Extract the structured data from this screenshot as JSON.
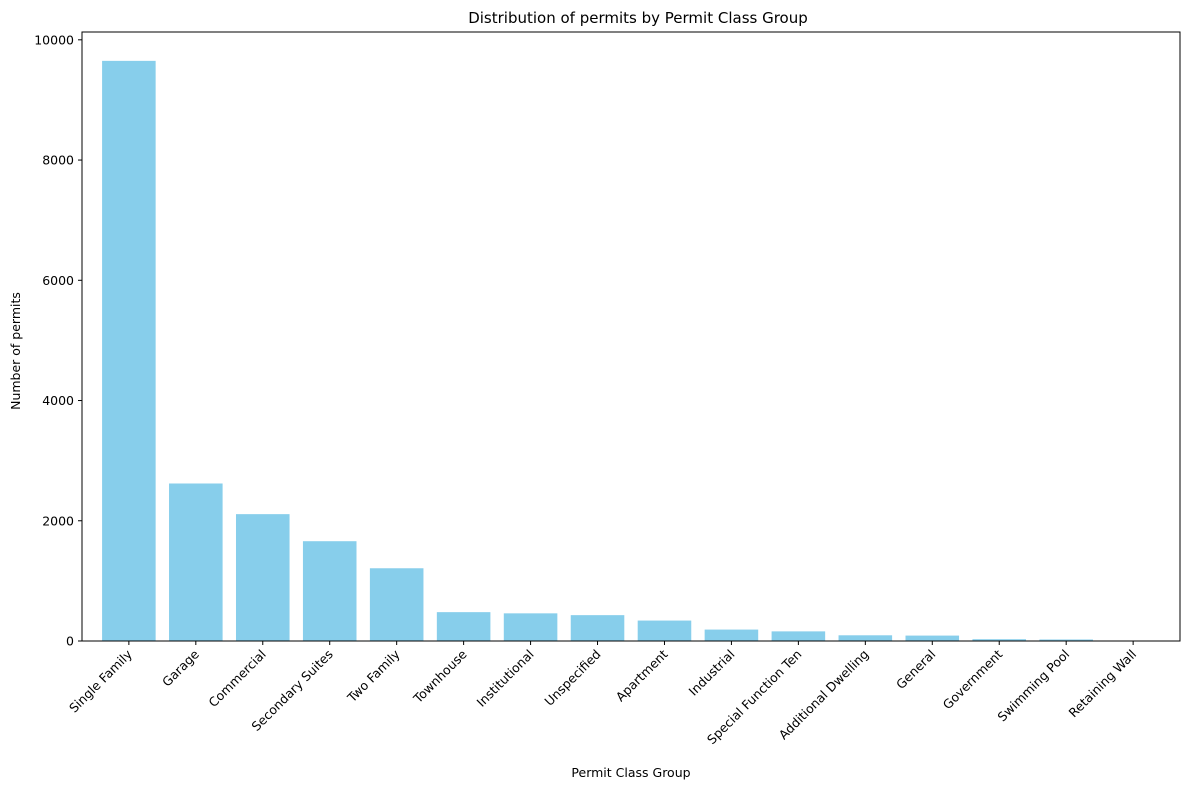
{
  "chart_data": {
    "type": "bar",
    "title": "Distribution of permits by Permit Class Group",
    "xlabel": "Permit Class Group",
    "ylabel": "Number of permits",
    "categories": [
      "Single Family",
      "Garage",
      "Commercial",
      "Secondary Suites",
      "Two Family",
      "Townhouse",
      "Institutional",
      "Unspecified",
      "Apartment",
      "Industrial",
      "Special Function Ten",
      "Additional Dwelling",
      "General",
      "Government",
      "Swimming Pool",
      "Retaining Wall"
    ],
    "values": [
      9650,
      2620,
      2110,
      1660,
      1210,
      480,
      460,
      430,
      340,
      190,
      160,
      95,
      90,
      30,
      25,
      5
    ],
    "ylim": [
      0,
      10130
    ],
    "yticks": [
      0,
      2000,
      4000,
      6000,
      8000,
      10000
    ],
    "bar_color": "#87CEEB",
    "grid": false,
    "legend": false
  }
}
